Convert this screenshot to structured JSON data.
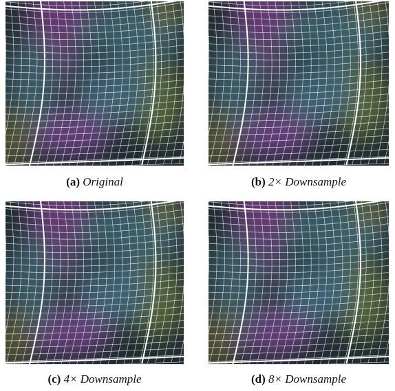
{
  "panels": [
    {
      "label": "(a)",
      "caption": "Original"
    },
    {
      "label": "(b)",
      "caption": "2× Downsample"
    },
    {
      "label": "(c)",
      "caption": "4× Downsample"
    },
    {
      "label": "(d)",
      "caption": "8× Downsample"
    }
  ]
}
